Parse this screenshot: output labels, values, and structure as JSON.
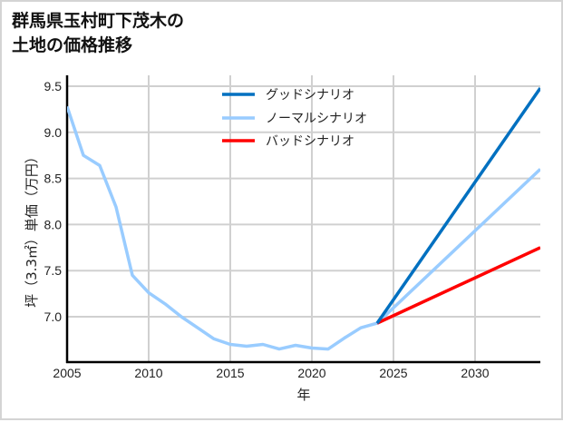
{
  "title_line1": "群馬県玉村町下茂木の",
  "title_line2": "土地の価格推移",
  "chart_data": {
    "type": "line",
    "title": "群馬県玉村町下茂木の土地の価格推移",
    "xlabel": "年",
    "ylabel": "坪（3.3㎡）単価（万円）",
    "xlim": [
      2005,
      2034
    ],
    "ylim": [
      6.5,
      9.6
    ],
    "x_ticks": [
      "2005",
      "2010",
      "2015",
      "2020",
      "2025",
      "2030"
    ],
    "y_ticks": [
      "7.0",
      "7.5",
      "8.0",
      "8.5",
      "9.0",
      "9.5"
    ],
    "grid": true,
    "legend_position": "upper center",
    "series": [
      {
        "name": "グッドシナリオ",
        "color": "#0070c0",
        "x": [
          2024,
          2034
        ],
        "values": [
          6.93,
          9.48
        ]
      },
      {
        "name": "ノーマルシナリオ",
        "color": "#99ccff",
        "x": [
          2005,
          2006,
          2007,
          2008,
          2009,
          2010,
          2011,
          2012,
          2013,
          2014,
          2015,
          2016,
          2017,
          2018,
          2019,
          2020,
          2021,
          2022,
          2023,
          2024,
          2034
        ],
        "values": [
          9.28,
          8.75,
          8.64,
          8.19,
          7.45,
          7.26,
          7.14,
          7.0,
          6.88,
          6.76,
          6.7,
          6.68,
          6.7,
          6.65,
          6.69,
          6.66,
          6.65,
          6.77,
          6.88,
          6.93,
          8.6
        ]
      },
      {
        "name": "バッドシナリオ",
        "color": "#ff0000",
        "x": [
          2024,
          2034
        ],
        "values": [
          6.93,
          7.75
        ]
      }
    ]
  }
}
